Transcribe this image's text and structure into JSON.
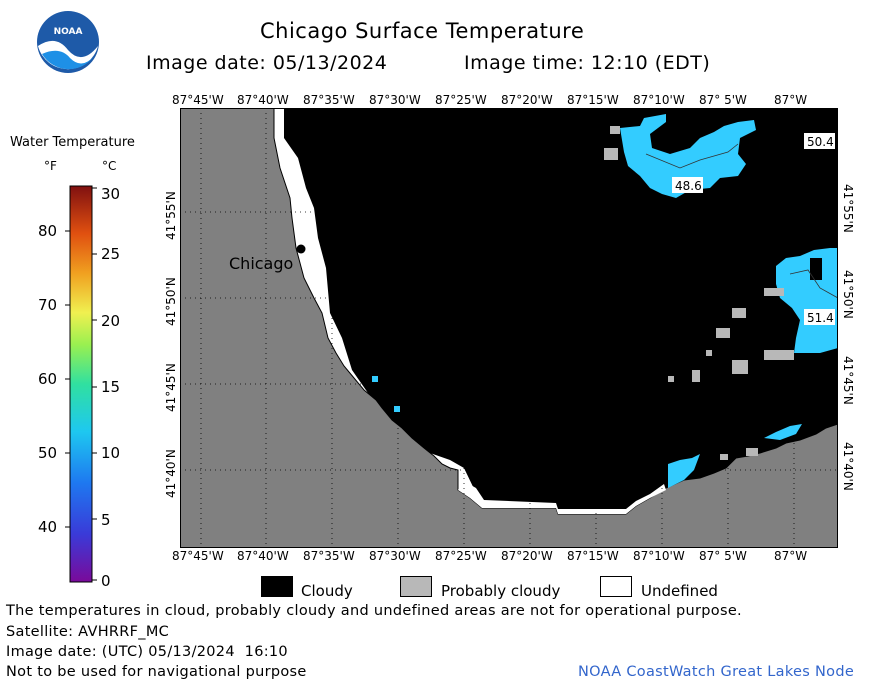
{
  "header": {
    "title": "Chicago Surface Temperature",
    "image_date_label": "Image date: 05/13/2024",
    "image_time_label": "Image time: 12:10 (EDT)",
    "logo_text": "NOAA"
  },
  "colorbar": {
    "title": "Water Temperature",
    "unit_f": "°F",
    "unit_c": "°C",
    "f_ticks": [
      "80",
      "70",
      "60",
      "50",
      "40"
    ],
    "c_ticks": [
      "30",
      "25",
      "20",
      "15",
      "10",
      "5",
      "0"
    ]
  },
  "map": {
    "lon_labels_top": [
      "87°45'W",
      "87°40'W",
      "87°35'W",
      "87°30'W",
      "87°25'W",
      "87°20'W",
      "87°15'W",
      "87°10'W",
      "87° 5'W",
      "87°W"
    ],
    "lon_labels_bottom": [
      "87°45'W",
      "87°40'W",
      "87°35'W",
      "87°30'W",
      "87°25'W",
      "87°20'W",
      "87°15'W",
      "87°10'W",
      "87° 5'W",
      "87°W"
    ],
    "lat_labels": [
      "41°55'N",
      "41°50'N",
      "41°45'N",
      "41°40'N"
    ],
    "city_label": "Chicago",
    "temperature_labels": [
      "50.4",
      "48.6",
      "51.4"
    ],
    "colors": {
      "land": "#808080",
      "cloud": "#000000",
      "probably_cloudy": "#b8b8b8",
      "undefined": "#ffffff",
      "water": "#33ccff"
    }
  },
  "legend": {
    "cloudy": "Cloudy",
    "probably_cloudy": "Probably cloudy",
    "undefined": "Undefined"
  },
  "footer": {
    "disclaimer": "The temperatures in cloud, probably cloudy and undefined areas are not for operational purpose.",
    "satellite": "Satellite: AVHRRF_MC",
    "utc_date": "Image date: (UTC) 05/13/2024  16:10",
    "nav_warning": "Not to be used for navigational purpose",
    "credit": "NOAA CoastWatch Great Lakes Node",
    "credit_color": "#3366cc"
  }
}
